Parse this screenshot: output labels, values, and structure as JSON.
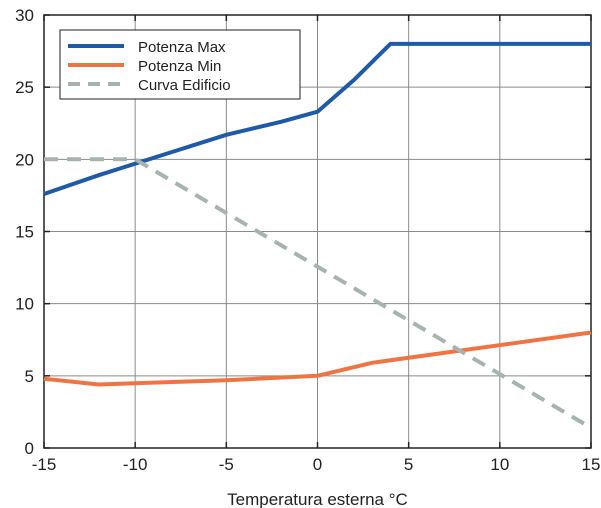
{
  "chart_data": {
    "type": "line",
    "xlabel": "Temperatura esterna °C",
    "ylabel": "",
    "title": "",
    "xlim": [
      -15,
      15
    ],
    "ylim": [
      0,
      30
    ],
    "x_ticks": [
      -15,
      -10,
      -5,
      0,
      5,
      10,
      15
    ],
    "y_ticks": [
      0,
      5,
      10,
      15,
      20,
      25,
      30
    ],
    "grid": true,
    "legend_position": "top-left",
    "series": [
      {
        "name": "Potenza Max",
        "color": "#1f5aa6",
        "dash": "solid",
        "points": [
          [
            -15,
            17.6
          ],
          [
            -12,
            18.9
          ],
          [
            -8,
            20.5
          ],
          [
            -5,
            21.7
          ],
          [
            -2,
            22.6
          ],
          [
            0,
            23.3
          ],
          [
            2,
            25.5
          ],
          [
            4,
            28.0
          ],
          [
            15,
            28.0
          ]
        ]
      },
      {
        "name": "Potenza Min",
        "color": "#ef7444",
        "dash": "solid",
        "points": [
          [
            -15,
            4.8
          ],
          [
            -12,
            4.4
          ],
          [
            -5,
            4.7
          ],
          [
            0,
            5.0
          ],
          [
            3,
            5.9
          ],
          [
            15,
            8.0
          ]
        ]
      },
      {
        "name": "Curva Edificio",
        "color": "#a7b3b0",
        "dash": "dashed",
        "points": [
          [
            -15,
            20.0
          ],
          [
            -10,
            20.0
          ],
          [
            15,
            1.4
          ]
        ]
      }
    ]
  }
}
